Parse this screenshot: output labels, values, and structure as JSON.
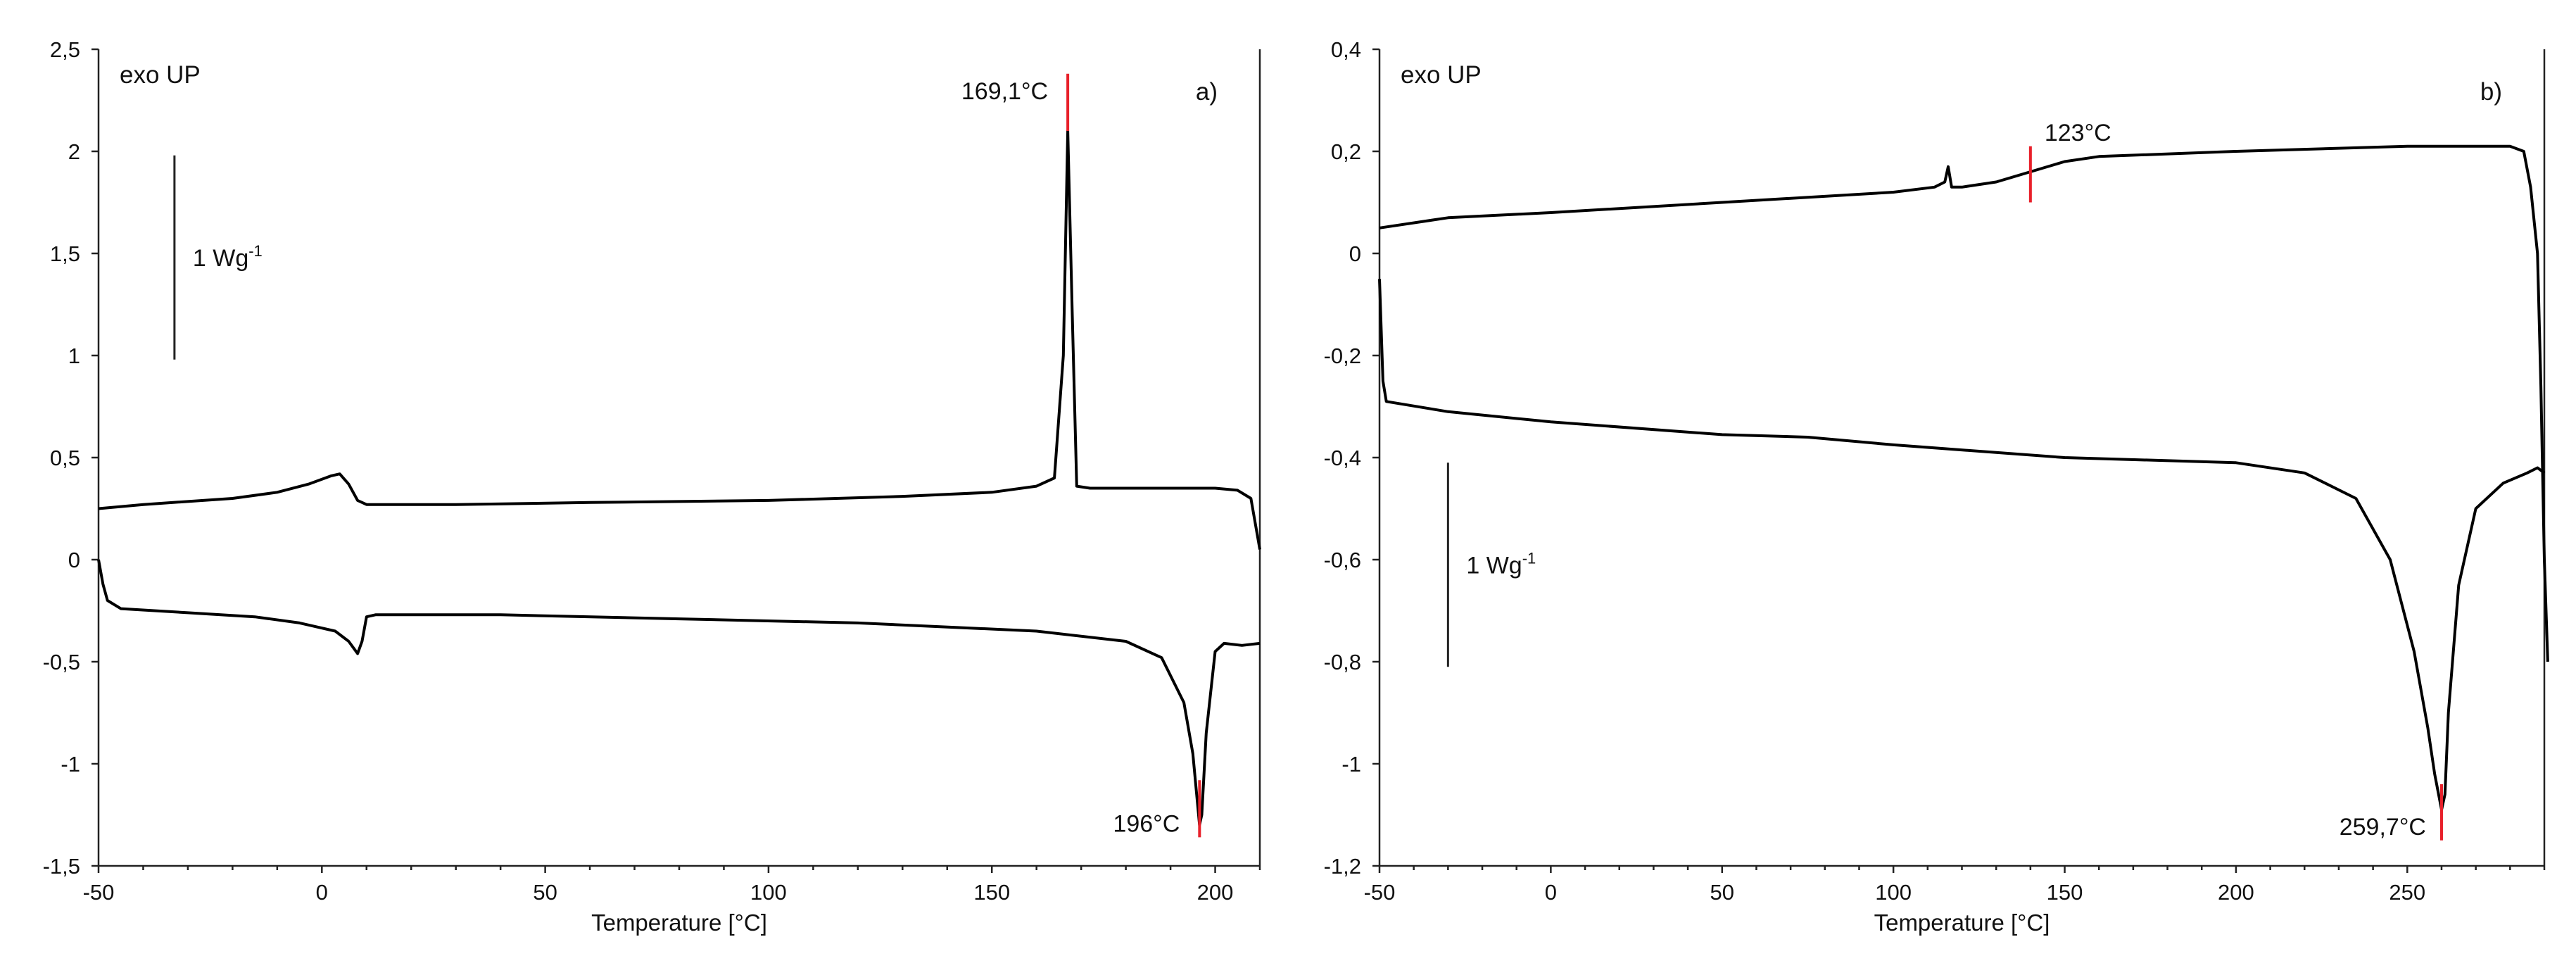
{
  "colors": {
    "curve": "#000000",
    "marker": "#e8202a",
    "axis": "#222222"
  },
  "chart_data": [
    {
      "type": "line",
      "panel_label": "a)",
      "exo_label": "exo UP",
      "xlabel": "Temperature [°C]",
      "ylabel": "",
      "xlim": [
        -50,
        210
      ],
      "ylim": [
        -1.5,
        2.5
      ],
      "x_ticks": [
        -50,
        0,
        50,
        100,
        150,
        200
      ],
      "x_tick_labels": [
        "-50",
        "0",
        "50",
        "100",
        "150",
        "200"
      ],
      "y_ticks": [
        -1.5,
        -1,
        -0.5,
        0,
        0.5,
        1,
        1.5,
        2,
        2.5
      ],
      "y_tick_labels": [
        "-1,5",
        "-1",
        "-0,5",
        "0",
        "0,5",
        "1",
        "1,5",
        "2",
        "2,5"
      ],
      "scale_bar": {
        "label": "1 Wg",
        "sup": "-1",
        "x": -33,
        "y_from": 0.98,
        "y_to": 1.98
      },
      "series": [
        {
          "points": [
            [
              -50,
              0.25
            ],
            [
              -40,
              0.27
            ],
            [
              -20,
              0.3
            ],
            [
              -10,
              0.33
            ],
            [
              -3,
              0.37
            ],
            [
              2,
              0.41
            ],
            [
              4,
              0.42
            ],
            [
              6,
              0.37
            ],
            [
              8,
              0.29
            ],
            [
              10,
              0.27
            ],
            [
              30,
              0.27
            ],
            [
              60,
              0.28
            ],
            [
              100,
              0.29
            ],
            [
              130,
              0.31
            ],
            [
              150,
              0.33
            ],
            [
              160,
              0.36
            ],
            [
              164,
              0.4
            ],
            [
              166,
              1.0
            ],
            [
              167,
              2.1
            ],
            [
              168,
              1.2
            ],
            [
              169,
              0.36
            ],
            [
              172,
              0.35
            ],
            [
              185,
              0.35
            ],
            [
              200,
              0.35
            ],
            [
              205,
              0.34
            ],
            [
              208,
              0.3
            ],
            [
              210,
              0.05
            ]
          ]
        },
        {
          "points": [
            [
              -50,
              0.0
            ],
            [
              -49,
              -0.12
            ],
            [
              -48,
              -0.2
            ],
            [
              -45,
              -0.24
            ],
            [
              -30,
              -0.26
            ],
            [
              -15,
              -0.28
            ],
            [
              -5,
              -0.31
            ],
            [
              3,
              -0.35
            ],
            [
              6,
              -0.4
            ],
            [
              8,
              -0.46
            ],
            [
              9,
              -0.4
            ],
            [
              10,
              -0.28
            ],
            [
              12,
              -0.27
            ],
            [
              40,
              -0.27
            ],
            [
              80,
              -0.29
            ],
            [
              120,
              -0.31
            ],
            [
              160,
              -0.35
            ],
            [
              180,
              -0.4
            ],
            [
              188,
              -0.48
            ],
            [
              193,
              -0.7
            ],
            [
              195,
              -0.95
            ],
            [
              196.5,
              -1.3
            ],
            [
              197,
              -1.25
            ],
            [
              198,
              -0.85
            ],
            [
              200,
              -0.45
            ],
            [
              202,
              -0.41
            ],
            [
              206,
              -0.42
            ],
            [
              210,
              -0.41
            ]
          ]
        }
      ],
      "markers": [
        {
          "x": 167,
          "y_from": 2.1,
          "y_to": 2.38,
          "label": "169,1°C"
        },
        {
          "x": 196.5,
          "y_from": -1.08,
          "y_to": -1.36,
          "label": "196°C"
        }
      ]
    },
    {
      "type": "line",
      "panel_label": "b)",
      "exo_label": "exo UP",
      "xlabel": "Temperature [°C]",
      "ylabel": "",
      "xlim": [
        -50,
        290
      ],
      "ylim": [
        -1.2,
        0.4
      ],
      "x_ticks": [
        -50,
        0,
        50,
        100,
        150,
        200,
        250
      ],
      "x_tick_labels": [
        "-50",
        "0",
        "50",
        "100",
        "150",
        "200",
        "250"
      ],
      "y_ticks": [
        -1.2,
        -1,
        -0.8,
        -0.6,
        -0.4,
        -0.2,
        0,
        0.2,
        0.4
      ],
      "y_tick_labels": [
        "-1,2",
        "-1",
        "-0,8",
        "-0,6",
        "-0,4",
        "-0,2",
        "0",
        "0,2",
        "0,4"
      ],
      "scale_bar": {
        "label": "1 Wg",
        "sup": "-1",
        "x": -30,
        "y_from": -0.81,
        "y_to": -0.41
      },
      "series": [
        {
          "points": [
            [
              -50,
              0.05
            ],
            [
              -30,
              0.07
            ],
            [
              0,
              0.08
            ],
            [
              50,
              0.1
            ],
            [
              100,
              0.12
            ],
            [
              112,
              0.13
            ],
            [
              115,
              0.14
            ],
            [
              116,
              0.17
            ],
            [
              117,
              0.13
            ],
            [
              120,
              0.13
            ],
            [
              130,
              0.14
            ],
            [
              140,
              0.16
            ],
            [
              150,
              0.18
            ],
            [
              160,
              0.19
            ],
            [
              200,
              0.2
            ],
            [
              250,
              0.21
            ],
            [
              280,
              0.21
            ],
            [
              284,
              0.2
            ],
            [
              286,
              0.13
            ],
            [
              288,
              0.0
            ],
            [
              289,
              -0.26
            ],
            [
              290,
              -0.6
            ],
            [
              291,
              -0.8
            ]
          ]
        },
        {
          "points": [
            [
              -50,
              -0.05
            ],
            [
              -49,
              -0.25
            ],
            [
              -48,
              -0.29
            ],
            [
              -30,
              -0.31
            ],
            [
              0,
              -0.33
            ],
            [
              50,
              -0.355
            ],
            [
              75,
              -0.36
            ],
            [
              100,
              -0.375
            ],
            [
              150,
              -0.4
            ],
            [
              200,
              -0.41
            ],
            [
              220,
              -0.43
            ],
            [
              235,
              -0.48
            ],
            [
              245,
              -0.6
            ],
            [
              252,
              -0.78
            ],
            [
              256,
              -0.93
            ],
            [
              258,
              -1.02
            ],
            [
              260,
              -1.09
            ],
            [
              261,
              -1.06
            ],
            [
              262,
              -0.9
            ],
            [
              265,
              -0.65
            ],
            [
              270,
              -0.5
            ],
            [
              278,
              -0.45
            ],
            [
              285,
              -0.43
            ],
            [
              288,
              -0.42
            ],
            [
              290,
              -0.43
            ]
          ]
        }
      ],
      "markers": [
        {
          "x": 140,
          "y_from": 0.1,
          "y_to": 0.21,
          "label": "123°C"
        },
        {
          "x": 260,
          "y_from": -1.04,
          "y_to": -1.15,
          "label": "259,7°C"
        }
      ]
    }
  ]
}
